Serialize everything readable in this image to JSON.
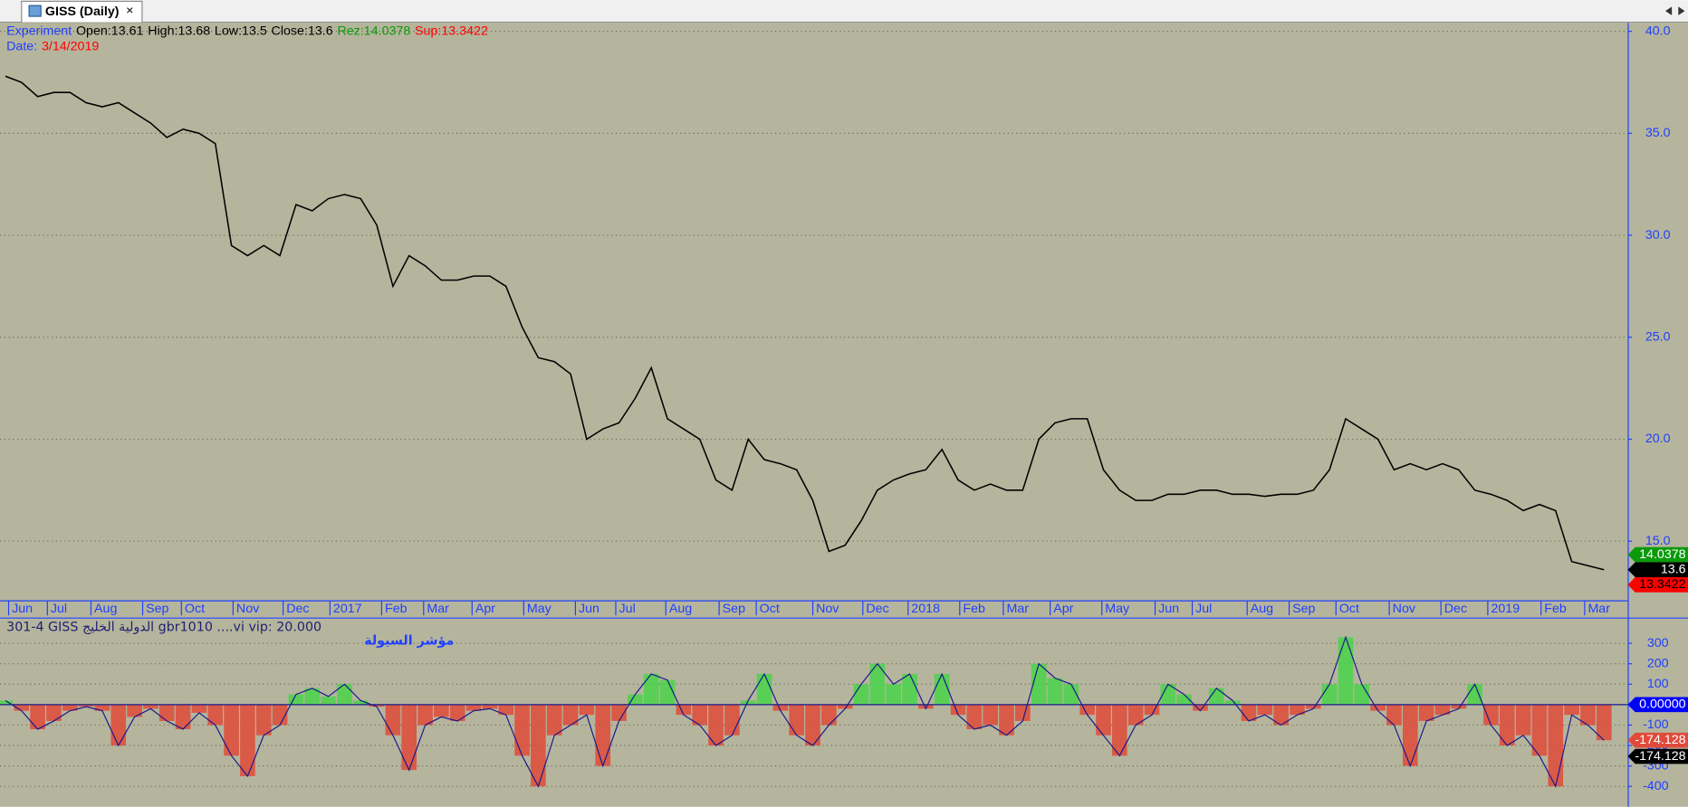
{
  "window": {
    "tab_title": "GISS (Daily)",
    "close_icon": "×"
  },
  "chart_data": [
    {
      "type": "line",
      "header": {
        "name": "Experiment",
        "fields": [
          {
            "label": "Open:",
            "value": 13.61,
            "color": "#000000"
          },
          {
            "label": "High:",
            "value": 13.68,
            "color": "#000000"
          },
          {
            "label": "Low:",
            "value": 13.5,
            "color": "#000000"
          },
          {
            "label": "Close:",
            "value": 13.6,
            "color": "#000000"
          },
          {
            "label": "Rez:",
            "value": 14.0378,
            "color": "#0a9a0a"
          },
          {
            "label": "Sup:",
            "value": 13.3422,
            "color": "#ff0000"
          }
        ],
        "date_label": "Date:",
        "date": "3/14/2019"
      },
      "color": "#000000",
      "values": [
        37.8,
        37.5,
        36.8,
        37.0,
        37.0,
        36.5,
        36.3,
        36.5,
        36.0,
        35.5,
        34.8,
        35.2,
        35.0,
        34.5,
        29.5,
        29.0,
        29.5,
        29.0,
        31.5,
        31.2,
        31.8,
        32.0,
        31.8,
        30.5,
        27.5,
        29.0,
        28.5,
        27.8,
        27.8,
        28.0,
        28.0,
        27.5,
        25.5,
        24.0,
        23.8,
        23.2,
        20.0,
        20.5,
        20.8,
        22.0,
        23.5,
        21.0,
        20.5,
        20.0,
        18.0,
        17.5,
        20.0,
        19.0,
        18.8,
        18.5,
        17.0,
        14.5,
        14.8,
        16.0,
        17.5,
        18.0,
        18.3,
        18.5,
        19.5,
        18.0,
        17.5,
        17.8,
        17.5,
        17.5,
        20.0,
        20.8,
        21.0,
        21.0,
        18.5,
        17.5,
        17.0,
        17.0,
        17.3,
        17.3,
        17.5,
        17.5,
        17.3,
        17.3,
        17.2,
        17.3,
        17.3,
        17.5,
        18.5,
        21.0,
        20.5,
        20.0,
        18.5,
        18.8,
        18.5,
        18.8,
        18.5,
        17.5,
        17.3,
        17.0,
        16.5,
        16.8,
        16.5,
        14.0,
        13.8,
        13.6
      ],
      "xticks": [
        {
          "value": 0.2,
          "label": "Jun"
        },
        {
          "value": 2.6,
          "label": "Jul"
        },
        {
          "value": 5.3,
          "label": "Aug"
        },
        {
          "value": 8.5,
          "label": "Sep"
        },
        {
          "value": 10.9,
          "label": "Oct"
        },
        {
          "value": 14.1,
          "label": "Nov"
        },
        {
          "value": 17.2,
          "label": "Dec"
        },
        {
          "value": 20.1,
          "label": "2017"
        },
        {
          "value": 23.3,
          "label": "Feb"
        },
        {
          "value": 25.9,
          "label": "Mar"
        },
        {
          "value": 28.9,
          "label": "Apr"
        },
        {
          "value": 32.1,
          "label": "May"
        },
        {
          "value": 35.3,
          "label": "Jun"
        },
        {
          "value": 37.8,
          "label": "Jul"
        },
        {
          "value": 40.9,
          "label": "Aug"
        },
        {
          "value": 44.2,
          "label": "Sep"
        },
        {
          "value": 46.5,
          "label": "Oct"
        },
        {
          "value": 50.0,
          "label": "Nov"
        },
        {
          "value": 53.1,
          "label": "Dec"
        },
        {
          "value": 55.9,
          "label": "2018"
        },
        {
          "value": 59.1,
          "label": "Feb"
        },
        {
          "value": 61.8,
          "label": "Mar"
        },
        {
          "value": 64.7,
          "label": "Apr"
        },
        {
          "value": 67.9,
          "label": "May"
        },
        {
          "value": 71.2,
          "label": "Jun"
        },
        {
          "value": 73.5,
          "label": "Jul"
        },
        {
          "value": 76.9,
          "label": "Aug"
        },
        {
          "value": 79.5,
          "label": "Sep"
        },
        {
          "value": 82.4,
          "label": "Oct"
        },
        {
          "value": 85.7,
          "label": "Nov"
        },
        {
          "value": 88.9,
          "label": "Dec"
        },
        {
          "value": 91.8,
          "label": "2019"
        },
        {
          "value": 95.1,
          "label": "Feb"
        },
        {
          "value": 97.8,
          "label": "Mar"
        }
      ],
      "ylim": [
        12.1,
        40.42
      ],
      "yticks": [
        {
          "value": 15,
          "label": "15.0"
        },
        {
          "value": 20,
          "label": "20.0"
        },
        {
          "value": 25,
          "label": "25.0"
        },
        {
          "value": 30,
          "label": "30.0"
        },
        {
          "value": 35,
          "label": "35.0"
        },
        {
          "value": 40,
          "label": "40.0"
        }
      ],
      "grid": true
    },
    {
      "type": "bar",
      "header": "301-4  GISS  الدولية الخليج  gbr1010 ....vi  vip:  20.000",
      "title": "مؤشر السيولة",
      "positive_color": "#4ad34a",
      "negative_color": "#e04a3a",
      "line_color": "#1a1a8a",
      "zero_tag_color": "#0000ff",
      "values": [
        20,
        -30,
        -120,
        -80,
        -30,
        -10,
        -30,
        -200,
        -60,
        -20,
        -80,
        -120,
        -40,
        -100,
        -250,
        -350,
        -150,
        -100,
        50,
        80,
        40,
        100,
        20,
        -10,
        -150,
        -320,
        -100,
        -60,
        -80,
        -30,
        -20,
        -50,
        -250,
        -400,
        -150,
        -100,
        -50,
        -300,
        -80,
        50,
        150,
        120,
        -50,
        -100,
        -200,
        -150,
        20,
        150,
        -30,
        -150,
        -200,
        -100,
        -20,
        100,
        200,
        100,
        150,
        -20,
        150,
        -50,
        -120,
        -100,
        -150,
        -80,
        200,
        130,
        100,
        -50,
        -150,
        -250,
        -100,
        -50,
        100,
        50,
        -30,
        80,
        20,
        -80,
        -50,
        -100,
        -50,
        -20,
        100,
        330,
        100,
        -30,
        -100,
        -300,
        -80,
        -50,
        -20,
        100,
        -100,
        -200,
        -150,
        -250,
        -400,
        -50,
        -100,
        -174.128
      ],
      "ylim": [
        -500,
        421
      ],
      "yticks": [
        -400,
        -300,
        -200,
        -100,
        {
          "value": 0,
          "label": "0.00000"
        },
        100,
        200,
        300
      ],
      "grid": true
    }
  ]
}
